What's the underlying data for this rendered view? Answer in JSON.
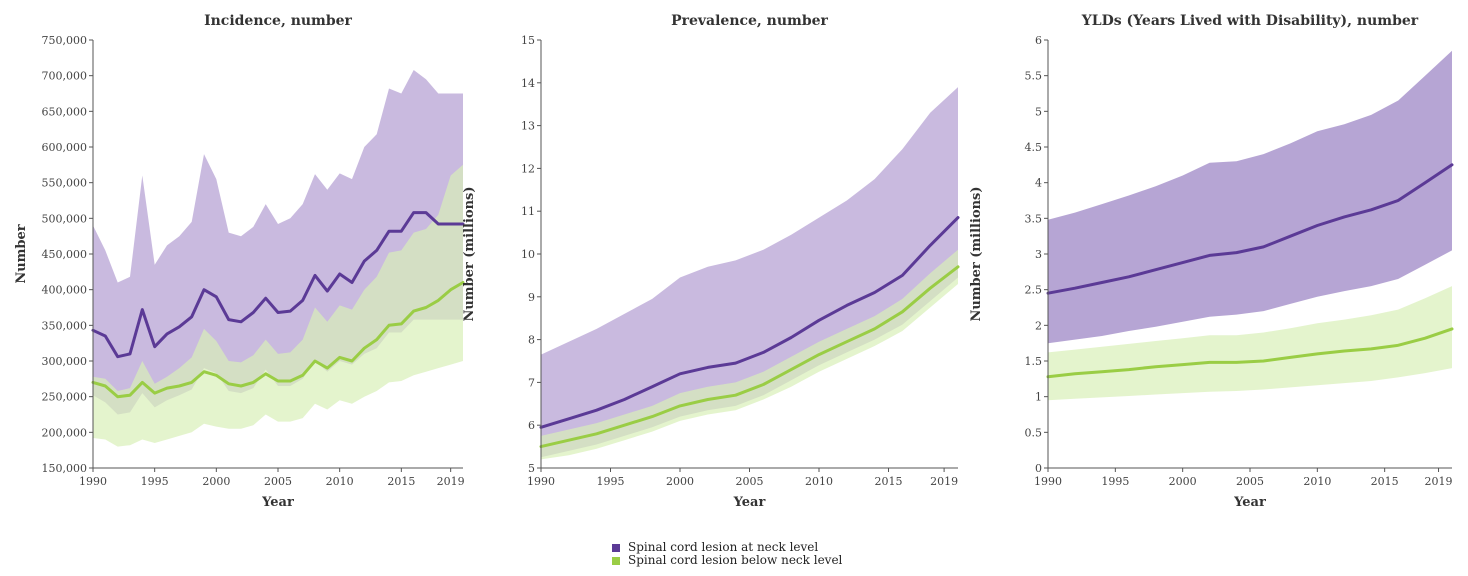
{
  "chart_data": [
    {
      "type": "area",
      "title": "Incidence, number",
      "xlabel": "Year",
      "ylabel": "Number",
      "xlim": [
        1990,
        2020
      ],
      "ylim": [
        150000,
        750000
      ],
      "xticks": [
        1990,
        1995,
        2000,
        2005,
        2010,
        2015,
        2019
      ],
      "yticks": [
        150000,
        200000,
        250000,
        300000,
        350000,
        400000,
        450000,
        500000,
        550000,
        600000,
        650000,
        700000,
        750000
      ],
      "ytick_labels": [
        "150,000",
        "200,000",
        "250,000",
        "300,000",
        "350,000",
        "400,000",
        "450,000",
        "500,000",
        "550,000",
        "600,000",
        "650,000",
        "700,000",
        "750,000"
      ],
      "x": [
        1990,
        1991,
        1992,
        1993,
        1994,
        1995,
        1996,
        1997,
        1998,
        1999,
        2000,
        2001,
        2002,
        2003,
        2004,
        2005,
        2006,
        2007,
        2008,
        2009,
        2010,
        2011,
        2012,
        2013,
        2014,
        2015,
        2016,
        2017,
        2018,
        2019,
        2020
      ],
      "series": [
        {
          "name": "Spinal cord lesion at neck level",
          "color": "#5b3a96",
          "band_color": "#bfaed9",
          "values": [
            343000,
            335000,
            306000,
            310000,
            372000,
            320000,
            338000,
            348000,
            362000,
            400000,
            390000,
            358000,
            355000,
            368000,
            388000,
            368000,
            370000,
            385000,
            420000,
            398000,
            422000,
            410000,
            440000,
            455000,
            482000,
            482000,
            508000,
            508000,
            492000,
            492000,
            492000
          ],
          "upper": [
            490000,
            455000,
            410000,
            418000,
            560000,
            435000,
            462000,
            475000,
            495000,
            590000,
            555000,
            480000,
            475000,
            488000,
            520000,
            492000,
            500000,
            520000,
            562000,
            540000,
            563000,
            555000,
            600000,
            618000,
            682000,
            675000,
            708000,
            695000,
            675000,
            675000,
            675000
          ],
          "lower": [
            252000,
            242000,
            225000,
            228000,
            255000,
            235000,
            245000,
            252000,
            260000,
            290000,
            283000,
            258000,
            255000,
            262000,
            288000,
            265000,
            265000,
            275000,
            300000,
            285000,
            300000,
            295000,
            310000,
            318000,
            340000,
            340000,
            358000,
            358000,
            358000,
            358000,
            358000
          ]
        },
        {
          "name": "Spinal cord lesion below neck level",
          "color": "#9acd45",
          "band_color": "#d8efb8",
          "values": [
            270000,
            265000,
            250000,
            252000,
            270000,
            255000,
            262000,
            265000,
            270000,
            285000,
            280000,
            268000,
            265000,
            270000,
            282000,
            272000,
            272000,
            280000,
            300000,
            290000,
            305000,
            300000,
            318000,
            330000,
            350000,
            352000,
            370000,
            375000,
            385000,
            400000,
            410000
          ],
          "upper": [
            278000,
            275000,
            258000,
            262000,
            300000,
            268000,
            278000,
            290000,
            305000,
            345000,
            328000,
            300000,
            298000,
            308000,
            330000,
            310000,
            312000,
            330000,
            375000,
            355000,
            378000,
            372000,
            400000,
            418000,
            452000,
            455000,
            480000,
            485000,
            505000,
            560000,
            575000
          ],
          "lower": [
            192000,
            190000,
            180000,
            182000,
            190000,
            185000,
            190000,
            195000,
            200000,
            212000,
            208000,
            205000,
            205000,
            210000,
            225000,
            215000,
            215000,
            220000,
            240000,
            232000,
            245000,
            240000,
            250000,
            258000,
            270000,
            272000,
            280000,
            285000,
            290000,
            295000,
            300000
          ]
        }
      ]
    },
    {
      "type": "area",
      "title": "Prevalence, number",
      "xlabel": "Year",
      "ylabel": "Number (millions)",
      "xlim": [
        1990,
        2020
      ],
      "ylim": [
        5,
        15
      ],
      "xticks": [
        1990,
        1995,
        2000,
        2005,
        2010,
        2015,
        2019
      ],
      "yticks": [
        5,
        6,
        7,
        8,
        9,
        10,
        11,
        12,
        13,
        14,
        15
      ],
      "ytick_labels": [
        "5",
        "6",
        "7",
        "8",
        "9",
        "10",
        "11",
        "12",
        "13",
        "14",
        "15"
      ],
      "x": [
        1990,
        1992,
        1994,
        1996,
        1998,
        2000,
        2002,
        2004,
        2006,
        2008,
        2010,
        2012,
        2014,
        2016,
        2018,
        2020
      ],
      "series": [
        {
          "name": "Spinal cord lesion at neck level",
          "color": "#5b3a96",
          "band_color": "#bfaed9",
          "values": [
            5.95,
            6.15,
            6.35,
            6.6,
            6.9,
            7.2,
            7.35,
            7.45,
            7.7,
            8.05,
            8.45,
            8.8,
            9.1,
            9.5,
            10.2,
            10.85
          ],
          "upper": [
            7.65,
            7.95,
            8.25,
            8.6,
            8.95,
            9.45,
            9.7,
            9.85,
            10.1,
            10.45,
            10.85,
            11.25,
            11.75,
            12.45,
            13.3,
            13.9
          ],
          "lower": [
            5.25,
            5.4,
            5.55,
            5.75,
            5.95,
            6.2,
            6.35,
            6.45,
            6.7,
            7.05,
            7.4,
            7.7,
            8.0,
            8.35,
            8.9,
            9.45
          ]
        },
        {
          "name": "Spinal cord lesion below neck level",
          "color": "#9acd45",
          "band_color": "#d8efb8",
          "values": [
            5.5,
            5.65,
            5.8,
            6.0,
            6.2,
            6.45,
            6.6,
            6.7,
            6.95,
            7.3,
            7.65,
            7.95,
            8.25,
            8.65,
            9.2,
            9.7
          ],
          "upper": [
            5.75,
            5.9,
            6.05,
            6.25,
            6.45,
            6.75,
            6.9,
            7.0,
            7.25,
            7.6,
            7.95,
            8.25,
            8.55,
            8.95,
            9.55,
            10.1
          ],
          "lower": [
            5.2,
            5.3,
            5.45,
            5.65,
            5.85,
            6.1,
            6.25,
            6.35,
            6.6,
            6.9,
            7.25,
            7.55,
            7.85,
            8.2,
            8.75,
            9.3
          ]
        }
      ]
    },
    {
      "type": "area",
      "title": "YLDs (Years Lived with Disability), number",
      "xlabel": "Year",
      "ylabel": "Number (millions)",
      "xlim": [
        1990,
        2020
      ],
      "ylim": [
        0,
        6
      ],
      "xticks": [
        1990,
        1995,
        2000,
        2005,
        2010,
        2015,
        2019
      ],
      "yticks": [
        0,
        0.5,
        1,
        1.5,
        2,
        2.5,
        3,
        3.5,
        4,
        4.5,
        5,
        5.5,
        6
      ],
      "ytick_labels": [
        "0",
        "0.5",
        "1",
        "1.5",
        "2",
        "2.5",
        "3",
        "3.5",
        "4",
        "4.5",
        "5",
        "5.5",
        "6"
      ],
      "x": [
        1990,
        1992,
        1994,
        1996,
        1998,
        2000,
        2002,
        2004,
        2006,
        2008,
        2010,
        2012,
        2014,
        2016,
        2018,
        2020
      ],
      "series": [
        {
          "name": "Spinal cord lesion at neck level",
          "color": "#5b3a96",
          "band_color": "#a995cd",
          "values": [
            2.45,
            2.52,
            2.6,
            2.68,
            2.78,
            2.88,
            2.98,
            3.02,
            3.1,
            3.25,
            3.4,
            3.52,
            3.62,
            3.75,
            4.0,
            4.25
          ],
          "upper": [
            3.48,
            3.58,
            3.7,
            3.82,
            3.95,
            4.1,
            4.28,
            4.3,
            4.4,
            4.55,
            4.72,
            4.82,
            4.95,
            5.15,
            5.5,
            5.85
          ],
          "lower": [
            1.75,
            1.8,
            1.85,
            1.92,
            1.98,
            2.05,
            2.12,
            2.15,
            2.2,
            2.3,
            2.4,
            2.48,
            2.55,
            2.65,
            2.85,
            3.05
          ]
        },
        {
          "name": "Spinal cord lesion below neck level",
          "color": "#9acd45",
          "band_color": "#d8efb8",
          "values": [
            1.28,
            1.32,
            1.35,
            1.38,
            1.42,
            1.45,
            1.48,
            1.48,
            1.5,
            1.55,
            1.6,
            1.64,
            1.67,
            1.72,
            1.82,
            1.95
          ],
          "upper": [
            1.62,
            1.66,
            1.7,
            1.74,
            1.78,
            1.82,
            1.86,
            1.86,
            1.9,
            1.96,
            2.03,
            2.08,
            2.14,
            2.22,
            2.38,
            2.55
          ],
          "lower": [
            0.95,
            0.97,
            0.99,
            1.01,
            1.03,
            1.05,
            1.07,
            1.08,
            1.1,
            1.13,
            1.16,
            1.19,
            1.22,
            1.27,
            1.33,
            1.4
          ]
        }
      ]
    }
  ],
  "legend": {
    "items": [
      {
        "label": "Spinal cord lesion at neck level",
        "color": "#5b3a96"
      },
      {
        "label": "Spinal cord lesion below neck level",
        "color": "#9acd45"
      }
    ]
  }
}
